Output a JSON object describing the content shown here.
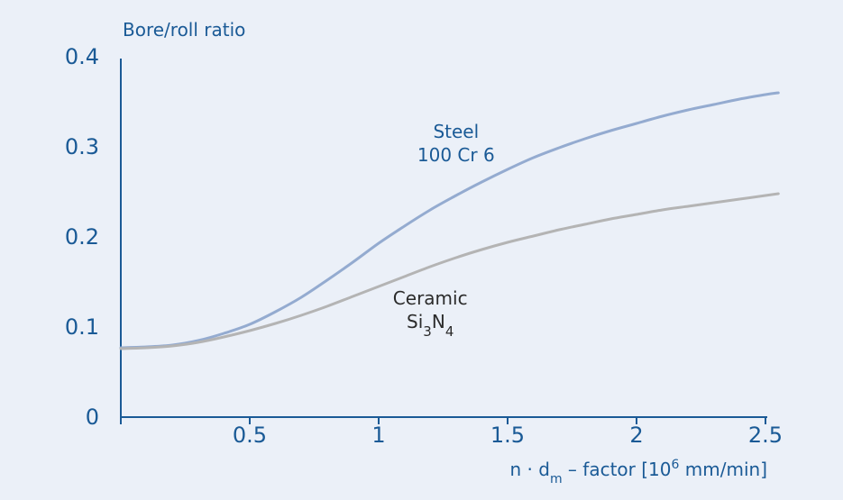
{
  "chart_data": {
    "type": "line",
    "title": "",
    "ylabel": "Bore/roll ratio",
    "xlabel_parts": {
      "prefix": "n · d",
      "prefix_sub": "m",
      "middle": " – factor [10",
      "sup": "6",
      "suffix": " mm/min]"
    },
    "xlim": [
      0,
      2.55
    ],
    "ylim": [
      0,
      0.4
    ],
    "x_ticks": [
      0.5,
      1,
      1.5,
      2,
      2.5
    ],
    "x_tick_labels": [
      "0.5",
      "1",
      "1.5",
      "2",
      "2.5"
    ],
    "y_ticks": [
      0,
      0.1,
      0.2,
      0.3,
      0.4
    ],
    "y_tick_labels": [
      "0",
      "0.1",
      "0.2",
      "0.3",
      "0.4"
    ],
    "grid": false,
    "series": [
      {
        "name": "Steel 100 Cr 6",
        "color": "#94abd0",
        "x": [
          0,
          0.1,
          0.2,
          0.3,
          0.4,
          0.5,
          0.6,
          0.7,
          0.8,
          0.9,
          1.0,
          1.1,
          1.2,
          1.3,
          1.4,
          1.5,
          1.6,
          1.7,
          1.8,
          1.9,
          2.0,
          2.1,
          2.2,
          2.3,
          2.4,
          2.5,
          2.55
        ],
        "y": [
          0.077,
          0.078,
          0.08,
          0.085,
          0.093,
          0.103,
          0.117,
          0.133,
          0.152,
          0.172,
          0.193,
          0.212,
          0.23,
          0.246,
          0.261,
          0.275,
          0.288,
          0.299,
          0.309,
          0.318,
          0.326,
          0.334,
          0.341,
          0.347,
          0.353,
          0.358,
          0.36
        ]
      },
      {
        "name": "Ceramic Si3N4",
        "color": "#b4b4b4",
        "x": [
          0,
          0.1,
          0.2,
          0.3,
          0.4,
          0.5,
          0.6,
          0.7,
          0.8,
          0.9,
          1.0,
          1.1,
          1.2,
          1.3,
          1.4,
          1.5,
          1.6,
          1.7,
          1.8,
          1.9,
          2.0,
          2.1,
          2.2,
          2.3,
          2.4,
          2.5,
          2.55
        ],
        "y": [
          0.076,
          0.077,
          0.079,
          0.083,
          0.089,
          0.096,
          0.104,
          0.113,
          0.123,
          0.134,
          0.145,
          0.156,
          0.167,
          0.177,
          0.186,
          0.194,
          0.201,
          0.208,
          0.214,
          0.22,
          0.225,
          0.23,
          0.234,
          0.238,
          0.242,
          0.246,
          0.248
        ]
      }
    ],
    "annotations": [
      {
        "series": 0,
        "lines": [
          "Steel",
          "100 Cr 6"
        ],
        "anchor": [
          1.3,
          0.31
        ]
      },
      {
        "series": 1,
        "lines": [
          "Ceramic"
        ],
        "chem": [
          {
            "t": "Si"
          },
          {
            "t": "3",
            "sub": true
          },
          {
            "t": "N"
          },
          {
            "t": "4",
            "sub": true
          }
        ],
        "anchor": [
          1.2,
          0.125
        ]
      }
    ]
  }
}
